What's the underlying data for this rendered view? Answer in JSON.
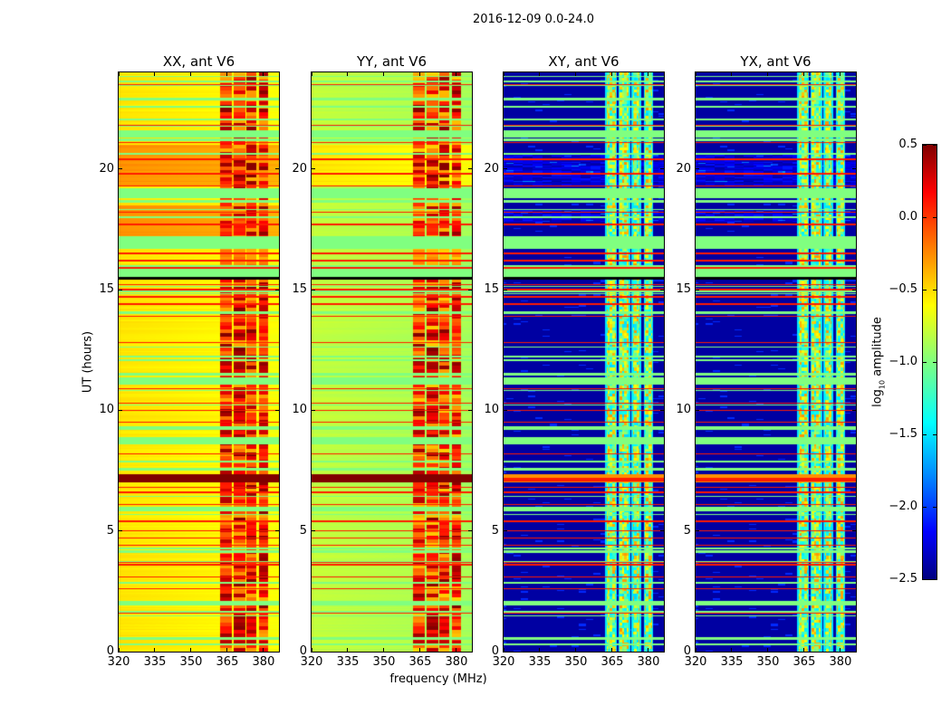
{
  "chart_data": {
    "type": "heatmap",
    "title": "2016-12-09 0.0-24.0",
    "xlabel": "frequency (MHz)",
    "ylabel": "UT (hours)",
    "xlim": [
      320,
      386.4
    ],
    "ylim": [
      0,
      24
    ],
    "xticks": [
      "320",
      "335",
      "350",
      "365",
      "380"
    ],
    "xtick_values": [
      320,
      335,
      350,
      365,
      380
    ],
    "yticks": [
      "0",
      "5",
      "10",
      "15",
      "20"
    ],
    "ytick_values": [
      0,
      5,
      10,
      15,
      20
    ],
    "colormap": "jet",
    "colorbar": {
      "label_prefix": "log",
      "label_sub": "10",
      "label_suffix": " amplitude",
      "range": [
        -2.5,
        0.5
      ],
      "ticks": [
        "−2.5",
        "−2.0",
        "−1.5",
        "−1.0",
        "−0.5",
        "0.0",
        "0.5"
      ],
      "tick_values": [
        -2.5,
        -2.0,
        -1.5,
        -1.0,
        -0.5,
        0.0,
        0.5
      ]
    },
    "rfi_bands_mhz": [
      [
        362,
        367
      ],
      [
        367.5,
        372.5
      ],
      [
        373,
        377
      ],
      [
        378,
        382
      ]
    ],
    "flagged_red_hours": [
      1.6,
      2.6,
      3.1,
      3.6,
      3.7,
      4.4,
      4.7,
      5.0,
      5.4,
      6.1,
      6.6,
      6.8,
      8.2,
      9.5,
      10.0,
      10.3,
      10.9,
      12.8,
      13.9,
      14.4,
      14.7,
      15.0,
      15.2,
      15.9,
      16.2,
      16.5,
      17.7,
      18.2,
      19.3,
      19.8,
      20.4,
      21.1,
      21.8,
      23.5
    ],
    "flagged_green_hours": [
      [
        0.25,
        0.35
      ],
      [
        0.5,
        0.6
      ],
      [
        1.9,
        2.1
      ],
      [
        2.8,
        2.9
      ],
      [
        4.1,
        4.2
      ],
      [
        5.8,
        6.0
      ],
      [
        7.5,
        7.6
      ],
      [
        8.6,
        8.9
      ],
      [
        9.2,
        9.3
      ],
      [
        11.1,
        11.3
      ],
      [
        14.0,
        14.1
      ],
      [
        15.5,
        16.0
      ],
      [
        16.7,
        17.2
      ],
      [
        18.8,
        19.2
      ],
      [
        21.3,
        21.6
      ],
      [
        22.0,
        22.1
      ]
    ],
    "saturated_hours": [
      7.0,
      7.35
    ],
    "panels": [
      {
        "title": "XX, ant V6",
        "background_level": -0.55,
        "band_level": [
          -0.4,
          0.5
        ],
        "enhanced_hours": [
          [
            17.2,
            18.5
          ],
          [
            19.3,
            21.0
          ]
        ]
      },
      {
        "title": "YY, ant V6",
        "background_level": -0.8,
        "band_level": [
          -0.5,
          0.5
        ],
        "enhanced_hours": [
          [
            19.3,
            21.0
          ]
        ]
      },
      {
        "title": "XY, ant V6",
        "background_level": -2.4,
        "band_level": [
          -1.5,
          -0.3
        ],
        "enhanced_hours": [
          [
            17.8,
            18.3
          ],
          [
            19.3,
            20.6
          ]
        ]
      },
      {
        "title": "YX, ant V6",
        "background_level": -2.4,
        "band_level": [
          -1.5,
          -0.3
        ],
        "enhanced_hours": [
          [
            17.8,
            18.3
          ],
          [
            19.3,
            20.6
          ]
        ]
      }
    ]
  }
}
